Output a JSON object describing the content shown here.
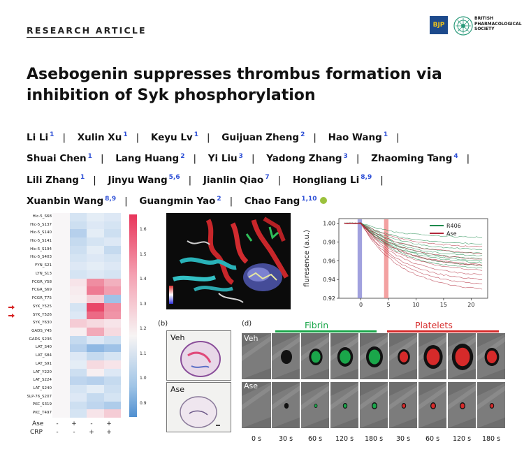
{
  "header": {
    "kicker": "RESEARCH ARTICLE",
    "logo_bjp": "BJP",
    "logo_bps_lines": [
      "BRITISH",
      "PHARMACOLOGICAL",
      "SOCIETY"
    ]
  },
  "title": "Asebogenin suppresses thrombus formation via inhibition of Syk phosphorylation",
  "authors": [
    {
      "name": "Li Li",
      "aff": "1"
    },
    {
      "name": "Xulin Xu",
      "aff": "1"
    },
    {
      "name": "Keyu Lv",
      "aff": "1"
    },
    {
      "name": "Guijuan Zheng",
      "aff": "2"
    },
    {
      "name": "Hao Wang",
      "aff": "1"
    },
    {
      "name": "Shuai Chen",
      "aff": "1"
    },
    {
      "name": "Lang Huang",
      "aff": "2"
    },
    {
      "name": "Yi Liu",
      "aff": "3"
    },
    {
      "name": "Yadong Zhang",
      "aff": "3"
    },
    {
      "name": "Zhaoming Tang",
      "aff": "4"
    },
    {
      "name": "Lili Zhang",
      "aff": "1"
    },
    {
      "name": "Jinyu Wang",
      "aff": "5,6"
    },
    {
      "name": "Jianlin Qiao",
      "aff": "7"
    },
    {
      "name": "Hongliang Li",
      "aff": "8,9"
    },
    {
      "name": "Xuanbin Wang",
      "aff": "8,9"
    },
    {
      "name": "Guangmin Yao",
      "aff": "2"
    },
    {
      "name": "Chao Fang",
      "aff": "1,10"
    }
  ],
  "colors": {
    "author_sup": "#2d4fd6",
    "fibrin": "#1aa64a",
    "platelets": "#d62a2a",
    "r406": "#1e8a4c",
    "ase": "#b0283a",
    "heat_high": "#e8355a",
    "heat_low": "#4f8fd0"
  },
  "heatmap": {
    "rows": [
      "Hic-5_S68",
      "Hic-5_S137",
      "Hic-5_S140",
      "Hic-5_S141",
      "Hic-5_S194",
      "Hic-5_S403",
      "FYN_S21",
      "LYN_S13",
      "FCGR_Y58",
      "FCGR_S69",
      "FCGR_T75",
      "SYK_Y525",
      "SYK_Y526",
      "SYK_Y630",
      "GADS_Y45",
      "GADS_S236",
      "LAT_S40",
      "LAT_S84",
      "LAT_S91",
      "LAT_Y220",
      "LAT_S224",
      "LAT_S240",
      "SLP-76_S207",
      "PKC_S319",
      "PKC_T497"
    ],
    "highlighted_rows": [
      "SYK_Y525",
      "SYK_Y526"
    ],
    "values": [
      [
        1.0,
        0.97,
        0.99,
        0.98
      ],
      [
        1.0,
        0.96,
        0.98,
        0.97
      ],
      [
        1.0,
        0.93,
        0.99,
        0.96
      ],
      [
        1.0,
        0.95,
        0.97,
        0.98
      ],
      [
        1.0,
        0.96,
        0.99,
        0.95
      ],
      [
        1.0,
        0.97,
        0.98,
        0.97
      ],
      [
        1.0,
        0.98,
        0.99,
        0.98
      ],
      [
        1.0,
        0.97,
        0.98,
        0.97
      ],
      [
        1.0,
        1.05,
        1.3,
        1.2
      ],
      [
        1.0,
        1.03,
        1.35,
        1.25
      ],
      [
        1.0,
        1.02,
        1.12,
        0.9
      ],
      [
        1.0,
        0.97,
        1.5,
        1.3
      ],
      [
        1.0,
        0.98,
        1.4,
        1.28
      ],
      [
        1.0,
        1.12,
        1.08,
        1.05
      ],
      [
        1.0,
        1.02,
        1.22,
        1.08
      ],
      [
        1.0,
        0.95,
        0.98,
        0.96
      ],
      [
        1.0,
        0.93,
        0.88,
        0.9
      ],
      [
        1.0,
        0.98,
        0.95,
        0.97
      ],
      [
        1.0,
        0.99,
        1.08,
        1.05
      ],
      [
        1.0,
        0.96,
        1.02,
        0.98
      ],
      [
        1.0,
        0.94,
        0.93,
        0.95
      ],
      [
        1.0,
        0.97,
        0.99,
        0.96
      ],
      [
        1.0,
        0.98,
        0.95,
        0.97
      ],
      [
        1.0,
        0.96,
        0.94,
        0.92
      ],
      [
        1.0,
        0.97,
        1.05,
        1.12
      ]
    ],
    "colorbar_ticks": [
      "1.6",
      "1.5",
      "1.4",
      "1.3",
      "1.2",
      "1.1",
      "1.0",
      "0.9"
    ],
    "condition_labels": [
      "Ase",
      "CRP"
    ],
    "ase_signs": [
      "-",
      "+",
      "-",
      "+"
    ],
    "crp_signs": [
      "-",
      "-",
      "+",
      "+"
    ]
  },
  "chart_data": {
    "type": "line",
    "ylabel": "fluresence (a.u.)",
    "xlabel": "",
    "x_ticks": [
      0,
      5,
      10,
      15,
      20
    ],
    "y_ticks": [
      1.0,
      0.98,
      0.96,
      0.94,
      0.92
    ],
    "xlim": [
      -4,
      23
    ],
    "ylim": [
      0.92,
      1.005
    ],
    "legend": "top-right",
    "series": [
      {
        "name": "R406",
        "color": "#1e8a4c",
        "end_values": [
          0.985,
          0.978,
          0.972,
          0.968,
          0.965,
          0.962,
          0.96,
          0.958,
          0.955,
          0.952
        ]
      },
      {
        "name": "Ase",
        "color": "#b0283a",
        "end_values": [
          0.975,
          0.968,
          0.962,
          0.956,
          0.95,
          0.945,
          0.94,
          0.935,
          0.93,
          0.955
        ]
      }
    ],
    "shaded_bands": [
      {
        "x0": -0.6,
        "x1": 0.2,
        "color": "#8a8ad6"
      },
      {
        "x0": 4.2,
        "x1": 5.0,
        "color": "#f08a8a"
      }
    ]
  },
  "panels": {
    "b_label": "(b)",
    "d_label": "(d)",
    "veh": "Veh",
    "ase": "Ase",
    "fibrin": "Fibrin",
    "platelets": "Platelets",
    "times": [
      "0 s",
      "30 s",
      "60 s",
      "120 s",
      "180 s",
      "30 s",
      "60 s",
      "120 s",
      "180 s"
    ]
  }
}
